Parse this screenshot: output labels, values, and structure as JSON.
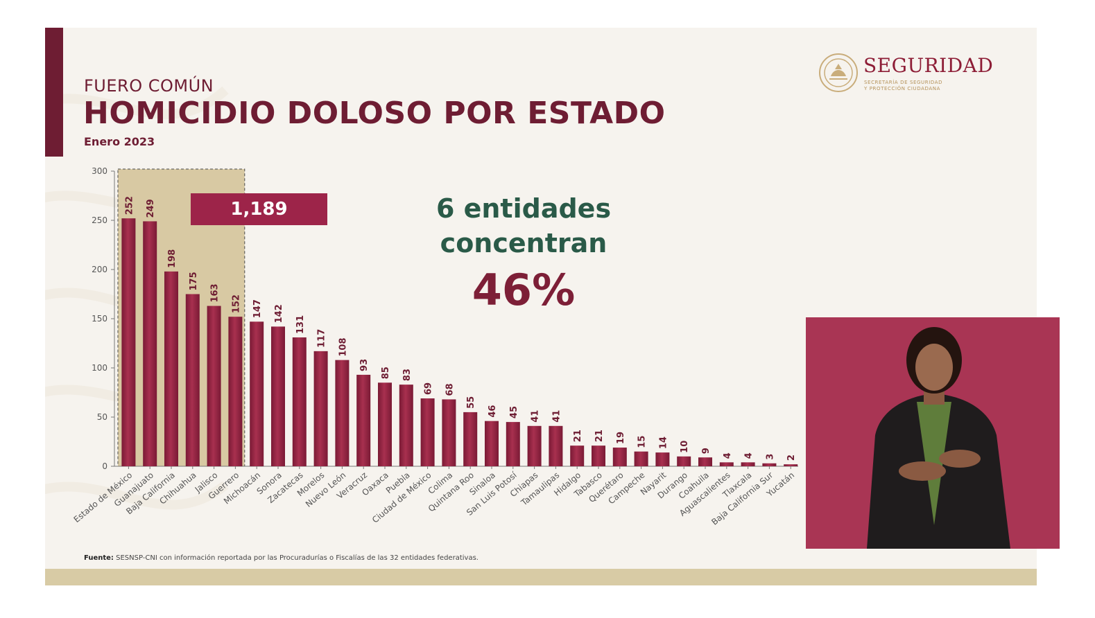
{
  "header": {
    "supertitle": "FUERO COMÚN",
    "title": "HOMICIDIO DOLOSO POR ESTADO",
    "period": "Enero 2023"
  },
  "logo": {
    "wordmark": "SEGURIDAD",
    "sub_line1": "SECRETARÍA DE SEGURIDAD",
    "sub_line2": "Y PROTECCIÓN CIUDADANA",
    "color": "#8d1d36"
  },
  "highlight": {
    "total_label": "1,189",
    "count": 6
  },
  "callout": {
    "line1": "6 entidades",
    "line2": "concentran",
    "percent": "46%"
  },
  "source": {
    "label": "Fuente:",
    "text": "SESNSP-CNI con información reportada por las Procuradurías o Fiscalías de las 32 entidades federativas."
  },
  "colors": {
    "brand": "#6e1d33",
    "bar": "#9d2449",
    "highlight_area": "#d8c9a3",
    "callout_text": "#2a5a48",
    "percent_text": "#7d1f37"
  },
  "chart_data": {
    "type": "bar",
    "title": "HOMICIDIO DOLOSO POR ESTADO",
    "xlabel": "",
    "ylabel": "",
    "ylim": [
      0,
      300
    ],
    "yticks": [
      0,
      50,
      100,
      150,
      200,
      250,
      300
    ],
    "grid": false,
    "categories": [
      "Estado de México",
      "Guanajuato",
      "Baja California",
      "Chihuahua",
      "Jalisco",
      "Guerrero",
      "Michoacán",
      "Sonora",
      "Zacatecas",
      "Morelos",
      "Nuevo León",
      "Veracruz",
      "Oaxaca",
      "Puebla",
      "Ciudad de México",
      "Colima",
      "Quintana Roo",
      "Sinaloa",
      "San Luis Potosí",
      "Chiapas",
      "Tamaulipas",
      "Hidalgo",
      "Tabasco",
      "Querétaro",
      "Campeche",
      "Nayarit",
      "Durango",
      "Coahuila",
      "Aguascalientes",
      "Tlaxcala",
      "Baja California Sur",
      "Yucatán"
    ],
    "values": [
      252,
      249,
      198,
      175,
      163,
      152,
      147,
      142,
      131,
      117,
      108,
      93,
      85,
      83,
      69,
      68,
      55,
      46,
      45,
      41,
      41,
      21,
      21,
      19,
      15,
      14,
      10,
      9,
      4,
      4,
      3,
      2
    ]
  }
}
